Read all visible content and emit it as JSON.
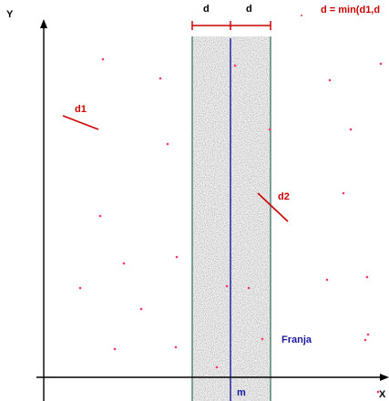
{
  "axes": {
    "x_label": "X",
    "y_label": "Y"
  },
  "labels": {
    "d_left": "d",
    "d_right": "d",
    "formula": "d = min(d1,d",
    "d1": "d1",
    "d2": "d2",
    "strip": "Franja",
    "median": "m"
  },
  "colors": {
    "points": "#ff3366",
    "red_text": "#cc0000",
    "blue_text": "#1a1aa0",
    "strip_border": "#2e6b5e",
    "median_line": "#1a1aa0"
  },
  "points": [
    [
      113,
      65
    ],
    [
      176,
      86
    ],
    [
      184,
      158
    ],
    [
      110,
      237
    ],
    [
      136,
      289
    ],
    [
      88,
      316
    ],
    [
      155,
      339
    ],
    [
      126,
      383
    ],
    [
      193,
      381
    ],
    [
      194,
      282
    ],
    [
      258,
      72
    ],
    [
      296,
      142
    ],
    [
      249,
      314
    ],
    [
      273,
      316
    ],
    [
      288,
      372
    ],
    [
      362,
      88
    ],
    [
      385,
      142
    ],
    [
      377,
      212
    ],
    [
      418,
      70
    ],
    [
      359,
      307
    ],
    [
      403,
      304
    ],
    [
      404,
      367
    ],
    [
      401,
      373
    ],
    [
      415,
      430
    ],
    [
      238,
      403
    ]
  ]
}
